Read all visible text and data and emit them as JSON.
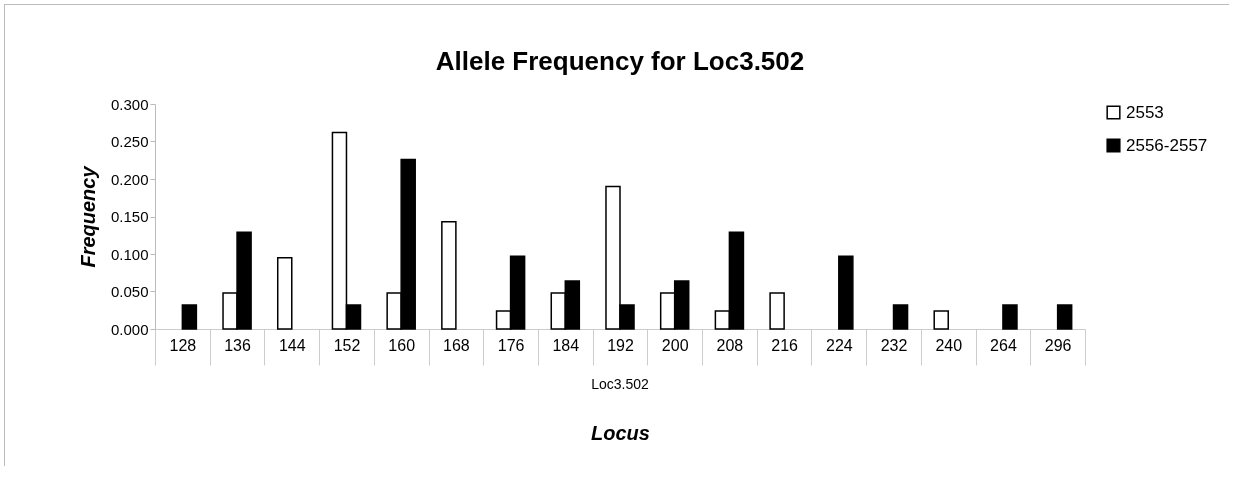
{
  "chart_data": {
    "type": "bar",
    "title": "Allele Frequency for Loc3.502",
    "xlabel": "Locus",
    "ylabel": "Frequency",
    "annotations": [
      "Loc3.502"
    ],
    "categories": [
      "128",
      "136",
      "144",
      "152",
      "160",
      "168",
      "176",
      "184",
      "192",
      "200",
      "208",
      "216",
      "224",
      "232",
      "240",
      "264",
      "296"
    ],
    "series": [
      {
        "name": "2553",
        "color": "#ffffff",
        "values": [
          0,
          0.048,
          0.095,
          0.262,
          0.048,
          0.143,
          0.024,
          0.048,
          0.19,
          0.048,
          0.024,
          0.048,
          0,
          0,
          0.024,
          0,
          0
        ]
      },
      {
        "name": "2556-2557",
        "color": "#000000",
        "values": [
          0.032,
          0.129,
          0,
          0.032,
          0.226,
          0,
          0.097,
          0.064,
          0.032,
          0.064,
          0.129,
          0,
          0.097,
          0.032,
          0,
          0.032,
          0.032
        ]
      }
    ],
    "ylim": [
      0,
      0.3
    ],
    "yticks": [
      {
        "value": 0,
        "label": "0.000"
      },
      {
        "value": 0.05,
        "label": "0.050"
      },
      {
        "value": 0.1,
        "label": "0.100"
      },
      {
        "value": 0.15,
        "label": "0.150"
      },
      {
        "value": 0.2,
        "label": "0.200"
      },
      {
        "value": 0.25,
        "label": "0.250"
      },
      {
        "value": 0.3,
        "label": "0.300"
      }
    ],
    "grid": false,
    "legend": "right"
  }
}
